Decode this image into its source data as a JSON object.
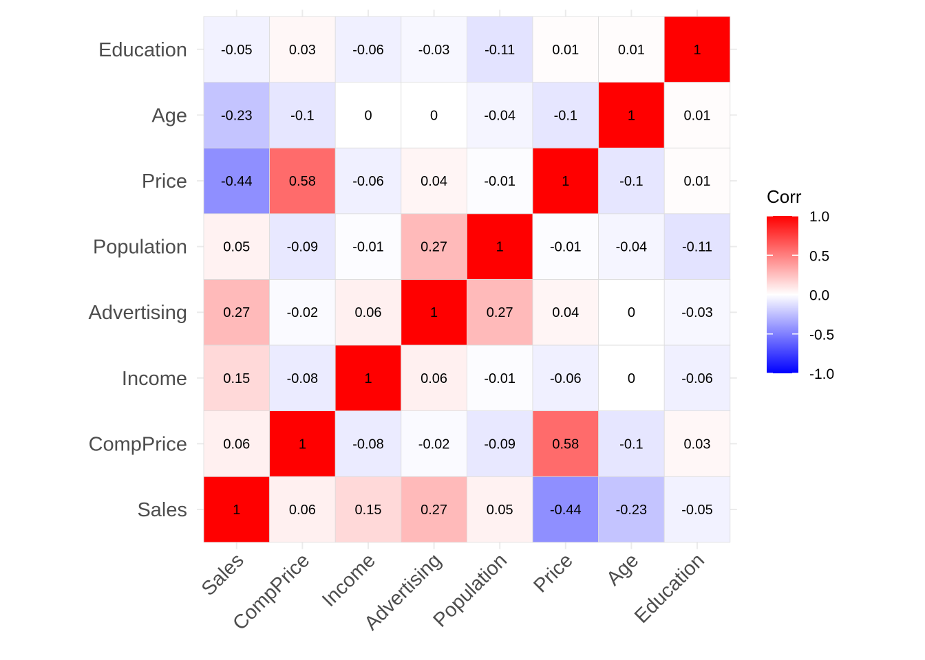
{
  "chart_data": {
    "type": "heatmap",
    "title": "",
    "xlabel": "",
    "ylabel": "",
    "variables": [
      "Sales",
      "CompPrice",
      "Income",
      "Advertising",
      "Population",
      "Price",
      "Age",
      "Education"
    ],
    "matrix": [
      [
        1,
        0.06,
        0.15,
        0.27,
        0.05,
        -0.44,
        -0.23,
        -0.05
      ],
      [
        0.06,
        1,
        -0.08,
        -0.02,
        -0.09,
        0.58,
        -0.1,
        0.03
      ],
      [
        0.15,
        -0.08,
        1,
        0.06,
        -0.01,
        -0.06,
        0,
        -0.06
      ],
      [
        0.27,
        -0.02,
        0.06,
        1,
        0.27,
        0.04,
        0,
        -0.03
      ],
      [
        0.05,
        -0.09,
        -0.01,
        0.27,
        1,
        -0.01,
        -0.04,
        -0.11
      ],
      [
        -0.44,
        0.58,
        -0.06,
        0.04,
        -0.01,
        1,
        -0.1,
        0.01
      ],
      [
        -0.23,
        -0.1,
        0,
        0,
        -0.04,
        -0.1,
        1,
        0.01
      ],
      [
        -0.05,
        0.03,
        -0.06,
        -0.03,
        -0.11,
        0.01,
        0.01,
        1
      ]
    ],
    "color_scale": {
      "low": "#0000FF",
      "mid": "#FFFFFF",
      "high": "#FF0000",
      "limits": [
        -1,
        1
      ]
    },
    "legend": {
      "title": "Corr",
      "position": "right",
      "breaks": [
        1,
        0.5,
        0,
        -0.5,
        -1
      ],
      "labels": [
        "1.0",
        "0.5",
        "0.0",
        "-0.5",
        "-1.0"
      ]
    },
    "grid": true
  }
}
